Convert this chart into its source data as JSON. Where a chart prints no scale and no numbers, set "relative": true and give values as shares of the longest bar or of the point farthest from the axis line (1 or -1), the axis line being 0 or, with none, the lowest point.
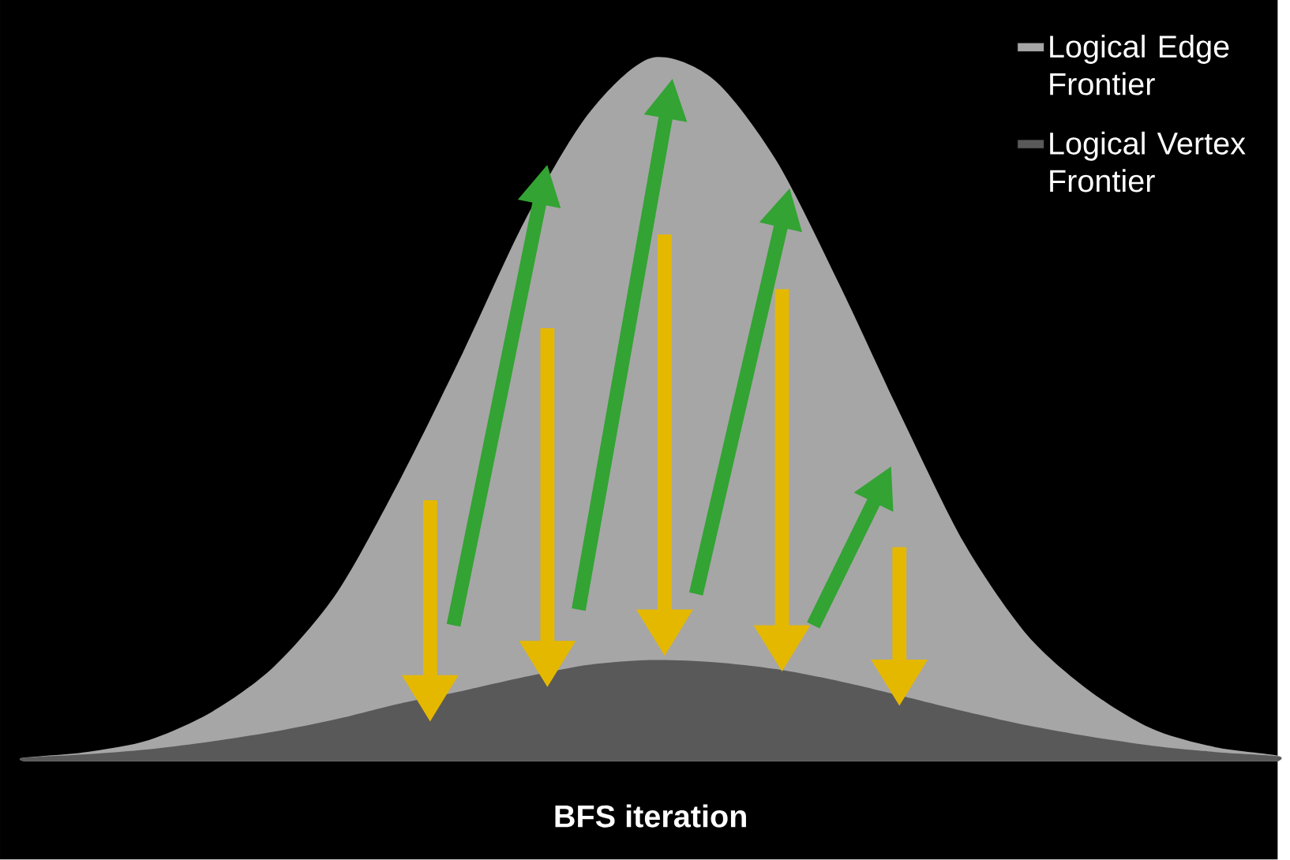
{
  "chart_data": {
    "type": "area",
    "xlabel": "BFS iteration",
    "relative": true,
    "legend": "top right",
    "categories": [
      null,
      null,
      null,
      null,
      null,
      null,
      null,
      null,
      null,
      null,
      null,
      null,
      null,
      null,
      null,
      null,
      null,
      null,
      null,
      null,
      null
    ],
    "series": [
      {
        "name": "Logical Edge Frontier",
        "color": "#a6a6a6",
        "values": [
          0.005,
          0.013,
          0.03,
          0.07,
          0.135,
          0.24,
          0.4,
          0.58,
          0.77,
          0.92,
          1.0,
          0.97,
          0.855,
          0.68,
          0.49,
          0.31,
          0.18,
          0.1,
          0.046,
          0.02,
          0.008
        ]
      },
      {
        "name": "Logical Vertex Frontier",
        "color": "#595959",
        "values": [
          0.005,
          0.01,
          0.017,
          0.028,
          0.042,
          0.06,
          0.082,
          0.1,
          0.12,
          0.137,
          0.144,
          0.141,
          0.131,
          0.114,
          0.093,
          0.071,
          0.051,
          0.035,
          0.022,
          0.013,
          0.007
        ]
      }
    ]
  }
}
